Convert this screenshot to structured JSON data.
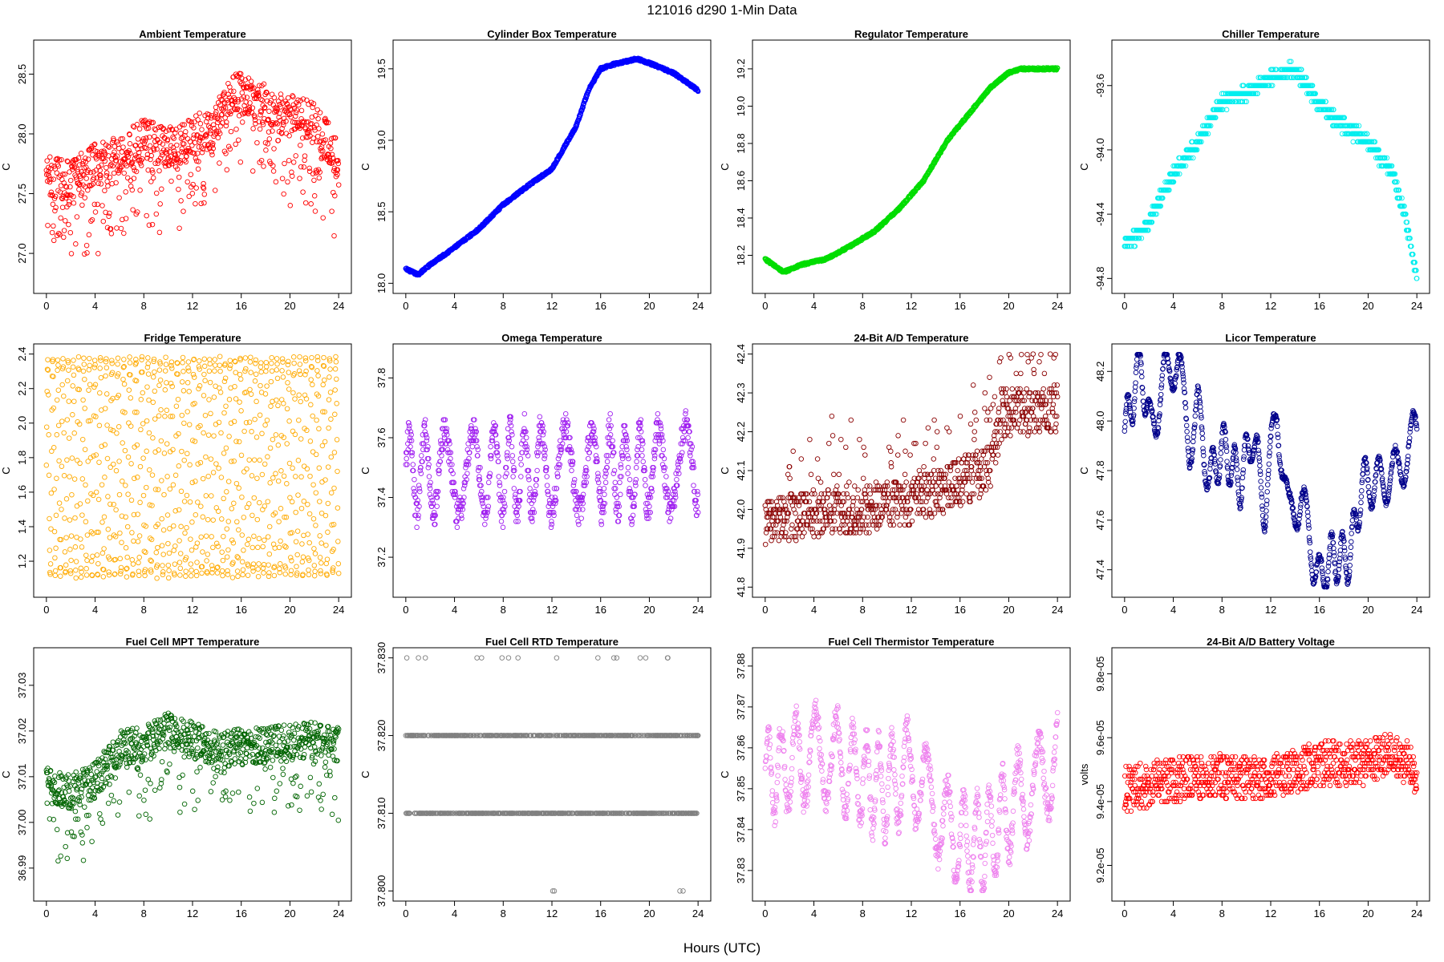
{
  "page_title": "121016    d290    1-Min Data",
  "x_axis_label": "Hours (UTC)",
  "chart_data": [
    {
      "type": "scatter",
      "title": "Ambient Temperature",
      "ylabel": "C",
      "color": "#ff0000",
      "xlim": [
        0,
        24
      ],
      "ylim": [
        26.75,
        28.7
      ],
      "yticks": [
        27.0,
        27.5,
        28.0,
        28.5
      ],
      "ytick_labels": [
        "27.0",
        "27.5",
        "28.0",
        "28.5"
      ],
      "xticks": [
        0,
        4,
        8,
        12,
        16,
        20,
        24
      ],
      "xtick_labels": [
        "0",
        "4",
        "8",
        "12",
        "16",
        "20",
        "24"
      ],
      "trend": [
        [
          0,
          27.65
        ],
        [
          2,
          27.6
        ],
        [
          4,
          27.75
        ],
        [
          6,
          27.8
        ],
        [
          8,
          27.95
        ],
        [
          10,
          27.9
        ],
        [
          12,
          27.95
        ],
        [
          14,
          28.1
        ],
        [
          15.5,
          28.35
        ],
        [
          17,
          28.3
        ],
        [
          18.5,
          28.2
        ],
        [
          20,
          28.15
        ],
        [
          22,
          28.1
        ],
        [
          23,
          27.95
        ],
        [
          24,
          27.75
        ]
      ],
      "noise": 0.18,
      "dips": 0.3,
      "dip_depth": 0.6
    },
    {
      "type": "scatter",
      "title": "Cylinder Box Temperature",
      "ylabel": "C",
      "color": "#0000ff",
      "xlim": [
        0,
        24
      ],
      "ylim": [
        18.0,
        19.63
      ],
      "yticks": [
        18.0,
        18.5,
        19.0,
        19.5
      ],
      "ytick_labels": [
        "18.0",
        "18.5",
        "19.0",
        "19.5"
      ],
      "xticks": [
        0,
        4,
        8,
        12,
        16,
        20,
        24
      ],
      "xtick_labels": [
        "0",
        "4",
        "8",
        "12",
        "16",
        "20",
        "24"
      ],
      "trend": [
        [
          0,
          18.1
        ],
        [
          1,
          18.06
        ],
        [
          2,
          18.13
        ],
        [
          4,
          18.25
        ],
        [
          6,
          18.38
        ],
        [
          8,
          18.55
        ],
        [
          10,
          18.68
        ],
        [
          12,
          18.8
        ],
        [
          14,
          19.1
        ],
        [
          15,
          19.35
        ],
        [
          16,
          19.5
        ],
        [
          17,
          19.53
        ],
        [
          18,
          19.55
        ],
        [
          19,
          19.57
        ],
        [
          20,
          19.54
        ],
        [
          22,
          19.47
        ],
        [
          24,
          19.35
        ]
      ],
      "noise": 0.008,
      "dips": 0,
      "dip_depth": 0
    },
    {
      "type": "scatter",
      "title": "Regulator Temperature",
      "ylabel": "C",
      "color": "#00dd00",
      "xlim": [
        0,
        24
      ],
      "ylim": [
        18.05,
        19.3
      ],
      "yticks": [
        18.2,
        18.4,
        18.6,
        18.8,
        19.0,
        19.2
      ],
      "ytick_labels": [
        "18.2",
        "18.4",
        "18.6",
        "18.8",
        "19.0",
        "19.2"
      ],
      "xticks": [
        0,
        4,
        8,
        12,
        16,
        20,
        24
      ],
      "xtick_labels": [
        "0",
        "4",
        "8",
        "12",
        "16",
        "20",
        "24"
      ],
      "trend": [
        [
          0,
          18.18
        ],
        [
          1.5,
          18.11
        ],
        [
          3,
          18.15
        ],
        [
          5,
          18.18
        ],
        [
          7,
          18.25
        ],
        [
          9,
          18.33
        ],
        [
          11,
          18.45
        ],
        [
          13,
          18.6
        ],
        [
          15,
          18.82
        ],
        [
          17,
          18.98
        ],
        [
          18.5,
          19.1
        ],
        [
          20,
          19.18
        ],
        [
          21,
          19.2
        ],
        [
          24,
          19.2
        ]
      ],
      "noise": 0.006,
      "dips": 0,
      "dip_depth": 0
    },
    {
      "type": "scatter",
      "title": "Chiller Temperature",
      "ylabel": "C",
      "color": "#00eeee",
      "xlim": [
        0,
        24
      ],
      "ylim": [
        -94.83,
        -93.38
      ],
      "yticks": [
        -94.8,
        -94.4,
        -94.0,
        -93.6
      ],
      "ytick_labels": [
        "-94.8",
        "-94.4",
        "-94.0",
        "-93.6"
      ],
      "xticks": [
        0,
        4,
        8,
        12,
        16,
        20,
        24
      ],
      "xtick_labels": [
        "0",
        "4",
        "8",
        "12",
        "16",
        "20",
        "24"
      ],
      "trend": [
        [
          0,
          -94.6
        ],
        [
          2,
          -94.45
        ],
        [
          4,
          -94.15
        ],
        [
          6,
          -93.95
        ],
        [
          8,
          -93.7
        ],
        [
          10,
          -93.65
        ],
        [
          12,
          -93.55
        ],
        [
          14,
          -93.5
        ],
        [
          16,
          -93.72
        ],
        [
          18,
          -93.85
        ],
        [
          20,
          -93.95
        ],
        [
          22,
          -94.15
        ],
        [
          23,
          -94.4
        ],
        [
          24,
          -94.8
        ]
      ],
      "noise": 0.04,
      "quantize": 0.05,
      "dips": 0,
      "dip_depth": 0
    },
    {
      "type": "scatter",
      "title": "Fridge Temperature",
      "ylabel": "C",
      "color": "#ffaa00",
      "xlim": [
        0,
        24
      ],
      "ylim": [
        1.05,
        2.4
      ],
      "yticks": [
        1.2,
        1.4,
        1.6,
        1.8,
        2.0,
        2.2,
        2.4
      ],
      "ytick_labels": [
        "1.2",
        "1.4",
        "1.6",
        "1.8",
        "2.0",
        "2.2",
        "2.4"
      ],
      "xticks": [
        0,
        4,
        8,
        12,
        16,
        20,
        24
      ],
      "xtick_labels": [
        "0",
        "4",
        "8",
        "12",
        "16",
        "20",
        "24"
      ],
      "trend": [
        [
          0,
          1.75
        ],
        [
          24,
          1.75
        ]
      ],
      "noise": 0,
      "uniform_band": [
        1.12,
        2.37
      ],
      "dips": 0,
      "dip_depth": 0
    },
    {
      "type": "scatter",
      "title": "Omega Temperature",
      "ylabel": "C",
      "color": "#a020f0",
      "xlim": [
        0,
        24
      ],
      "ylim": [
        37.1,
        37.88
      ],
      "yticks": [
        37.2,
        37.4,
        37.6,
        37.8
      ],
      "ytick_labels": [
        "37.2",
        "37.4",
        "37.6",
        "37.8"
      ],
      "xticks": [
        0,
        4,
        8,
        12,
        16,
        20,
        24
      ],
      "xtick_labels": [
        "0",
        "4",
        "8",
        "12",
        "16",
        "20",
        "24"
      ],
      "trend": [
        [
          0,
          37.48
        ],
        [
          24,
          37.5
        ]
      ],
      "noise": 0.05,
      "wave_amp": 0.14,
      "wave_period": 1.6,
      "quantize": 0.01,
      "dips": 0,
      "dip_depth": 0
    },
    {
      "type": "scatter",
      "title": "24-Bit A/D Temperature",
      "ylabel": "C",
      "color": "#8b0000",
      "xlim": [
        0,
        24
      ],
      "ylim": [
        41.8,
        42.4
      ],
      "yticks": [
        41.8,
        41.9,
        42.0,
        42.1,
        42.2,
        42.3,
        42.4
      ],
      "ytick_labels": [
        "41.8",
        "41.9",
        "42.0",
        "42.1",
        "42.2",
        "42.3",
        "42.4"
      ],
      "xticks": [
        0,
        4,
        8,
        12,
        16,
        20,
        24
      ],
      "xtick_labels": [
        "0",
        "4",
        "8",
        "12",
        "16",
        "20",
        "24"
      ],
      "trend": [
        [
          0,
          41.97
        ],
        [
          4,
          41.99
        ],
        [
          8,
          42.0
        ],
        [
          12,
          42.02
        ],
        [
          16,
          42.07
        ],
        [
          18.5,
          42.1
        ],
        [
          19.5,
          42.25
        ],
        [
          24,
          42.26
        ]
      ],
      "noise": 0.06,
      "quantize": 0.01,
      "spikes": 0.15,
      "spike_height": 0.22,
      "dips": 0,
      "dip_depth": 0
    },
    {
      "type": "scatter",
      "title": "Licor Temperature",
      "ylabel": "C",
      "color": "#00008b",
      "xlim": [
        0,
        24
      ],
      "ylim": [
        47.33,
        48.27
      ],
      "yticks": [
        47.4,
        47.6,
        47.8,
        48.0,
        48.2
      ],
      "ytick_labels": [
        "47.4",
        "47.6",
        "47.8",
        "48.0",
        "48.2"
      ],
      "xticks": [
        0,
        4,
        8,
        12,
        16,
        20,
        24
      ],
      "xtick_labels": [
        "0",
        "4",
        "8",
        "12",
        "16",
        "20",
        "24"
      ],
      "trend": [
        [
          0,
          47.95
        ],
        [
          1.3,
          48.24
        ],
        [
          2.2,
          47.95
        ],
        [
          3.4,
          48.2
        ],
        [
          4.4,
          48.25
        ],
        [
          5.3,
          47.9
        ],
        [
          6.0,
          48.05
        ],
        [
          7.0,
          47.75
        ],
        [
          8.0,
          47.9
        ],
        [
          9.5,
          47.75
        ],
        [
          10.5,
          47.95
        ],
        [
          11.5,
          47.65
        ],
        [
          12.5,
          48.05
        ],
        [
          13.5,
          47.6
        ],
        [
          14.5,
          47.7
        ],
        [
          15.5,
          47.45
        ],
        [
          16,
          47.35
        ],
        [
          17,
          47.45
        ],
        [
          18.5,
          47.45
        ],
        [
          19.5,
          47.75
        ],
        [
          21,
          47.75
        ],
        [
          22.5,
          47.8
        ],
        [
          23.5,
          47.9
        ],
        [
          24,
          48.0
        ]
      ],
      "noise": 0.012,
      "wave_amp": 0.1,
      "wave_period": 1.1,
      "dips": 0,
      "dip_depth": 0
    },
    {
      "type": "scatter",
      "title": "Fuel Cell MPT Temperature",
      "ylabel": "C",
      "color": "#006400",
      "xlim": [
        0,
        24
      ],
      "ylim": [
        36.985,
        37.036
      ],
      "yticks": [
        36.99,
        37.0,
        37.01,
        37.02,
        37.03
      ],
      "ytick_labels": [
        "36.99",
        "37.00",
        "37.01",
        "37.02",
        "37.03"
      ],
      "xticks": [
        0,
        4,
        8,
        12,
        16,
        20,
        24
      ],
      "xtick_labels": [
        "0",
        "4",
        "8",
        "12",
        "16",
        "20",
        "24"
      ],
      "trend": [
        [
          0,
          37.008
        ],
        [
          2,
          37.007
        ],
        [
          4,
          37.009
        ],
        [
          6,
          37.016
        ],
        [
          8,
          37.017
        ],
        [
          10,
          37.02
        ],
        [
          12,
          37.018
        ],
        [
          14,
          37.016
        ],
        [
          18,
          37.017
        ],
        [
          22,
          37.018
        ],
        [
          24,
          37.017
        ]
      ],
      "noise": 0.004,
      "dips": 0.18,
      "dip_depth": 0.014
    },
    {
      "type": "scatter",
      "title": "Fuel Cell RTD Temperature",
      "ylabel": "C",
      "color": "#808080",
      "xlim": [
        0,
        24
      ],
      "ylim": [
        37.8,
        37.83
      ],
      "yticks": [
        37.8,
        37.81,
        37.82,
        37.83
      ],
      "ytick_labels": [
        "37.800",
        "37.810",
        "37.820",
        "37.830"
      ],
      "xticks": [
        0,
        4,
        8,
        12,
        16,
        20,
        24
      ],
      "xtick_labels": [
        "0",
        "4",
        "8",
        "12",
        "16",
        "20",
        "24"
      ],
      "levels": [
        37.8,
        37.81,
        37.82,
        37.83
      ],
      "level_weights": [
        0.004,
        0.5,
        0.48,
        0.016
      ],
      "trend": [
        [
          0,
          37.815
        ],
        [
          24,
          37.815
        ]
      ],
      "noise": 0,
      "dips": 0,
      "dip_depth": 0
    },
    {
      "type": "scatter",
      "title": "Fuel Cell Thermistor Temperature",
      "ylabel": "C",
      "color": "#ee82ee",
      "xlim": [
        0,
        24
      ],
      "ylim": [
        37.825,
        37.882
      ],
      "yticks": [
        37.83,
        37.84,
        37.85,
        37.86,
        37.87,
        37.88
      ],
      "ytick_labels": [
        "37.83",
        "37.84",
        "37.85",
        "37.86",
        "37.87",
        "37.88"
      ],
      "xticks": [
        0,
        4,
        8,
        12,
        16,
        20,
        24
      ],
      "xtick_labels": [
        "0",
        "4",
        "8",
        "12",
        "16",
        "20",
        "24"
      ],
      "trend": [
        [
          0,
          37.852
        ],
        [
          2,
          37.856
        ],
        [
          4,
          37.858
        ],
        [
          6,
          37.857
        ],
        [
          8,
          37.852
        ],
        [
          10,
          37.85
        ],
        [
          12,
          37.855
        ],
        [
          14,
          37.845
        ],
        [
          15.5,
          37.838
        ],
        [
          17,
          37.836
        ],
        [
          18.5,
          37.838
        ],
        [
          20,
          37.845
        ],
        [
          22,
          37.85
        ],
        [
          24,
          37.858
        ]
      ],
      "noise": 0.003,
      "wave_amp": 0.011,
      "wave_period": 1.3,
      "dips": 0,
      "dip_depth": 0
    },
    {
      "type": "scatter",
      "title": "24-Bit A/D Battery Voltage",
      "ylabel": "volts",
      "color": "#ff0000",
      "xlim": [
        0,
        24
      ],
      "ylim": [
        9.12e-05,
        9.85e-05
      ],
      "yticks": [
        9.2e-05,
        9.4e-05,
        9.6e-05,
        9.8e-05
      ],
      "ytick_labels": [
        "9.2e-05",
        "9.4e-05",
        "9.6e-05",
        "9.8e-05"
      ],
      "xticks": [
        0,
        4,
        8,
        12,
        16,
        20,
        24
      ],
      "xtick_labels": [
        "0",
        "4",
        "8",
        "12",
        "16",
        "20",
        "24"
      ],
      "trend": [
        [
          0,
          9.44e-05
        ],
        [
          4,
          9.47e-05
        ],
        [
          8,
          9.48e-05
        ],
        [
          12,
          9.47e-05
        ],
        [
          16,
          9.52e-05
        ],
        [
          20,
          9.52e-05
        ],
        [
          22,
          9.55e-05
        ],
        [
          24,
          9.5e-05
        ]
      ],
      "noise": 7e-07,
      "quantize": 1e-07,
      "dips": 0,
      "dip_depth": 0
    }
  ]
}
